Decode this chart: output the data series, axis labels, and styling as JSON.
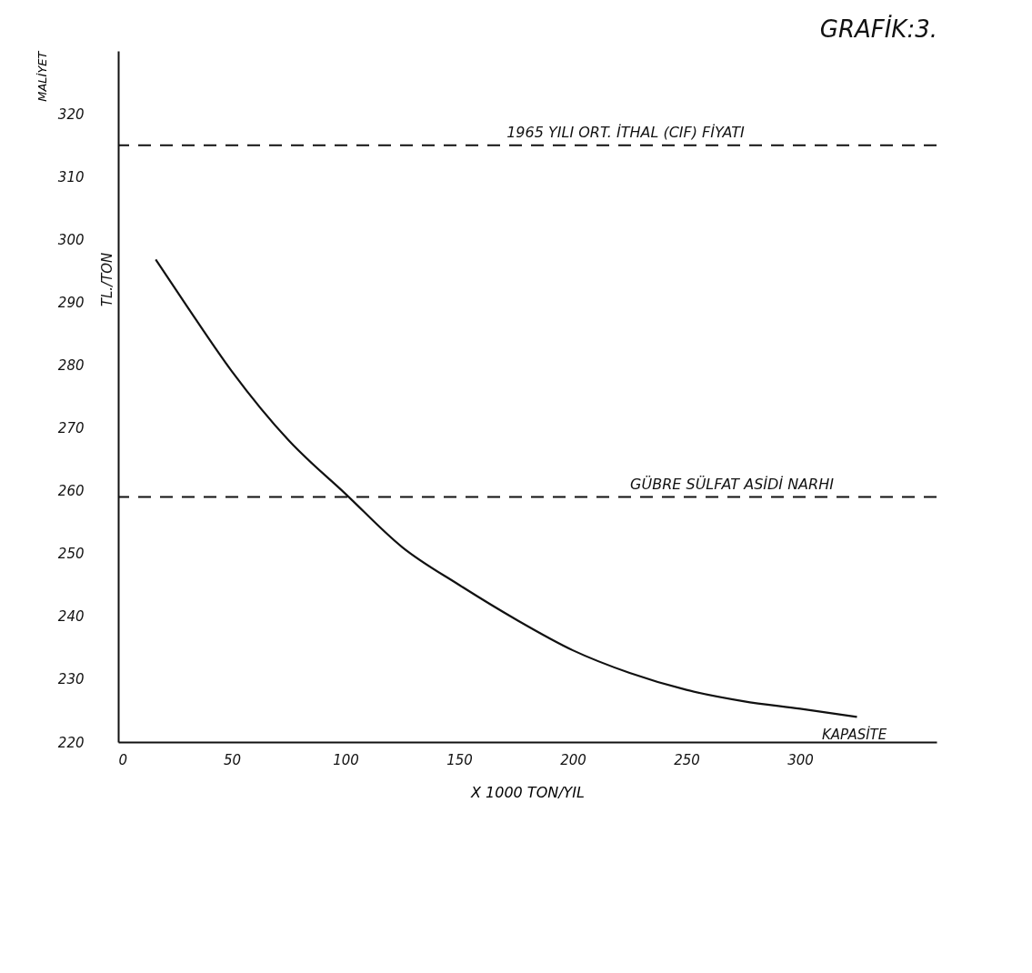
{
  "chart_data": {
    "type": "line",
    "title": "GRAFİK:3.",
    "ylabel": "MALİYET",
    "xlabel": "X 1000 TON/YIL",
    "annotations": [
      "TL./TON",
      "KAPASİTE"
    ],
    "x": [
      16.5,
      30,
      50,
      75,
      100,
      125,
      150,
      175,
      200,
      225,
      250,
      275,
      300,
      325
    ],
    "series": [
      {
        "color": "#111111",
        "values": [
          296.8,
          289.5,
          279,
          268,
          259.5,
          251,
          245,
          239.5,
          234.6,
          231,
          228.3,
          226.5,
          225.3,
          224
        ]
      }
    ],
    "xlim": [
      0,
      360
    ],
    "xticks": [
      0,
      50,
      100,
      150,
      200,
      250,
      300
    ],
    "ylim": [
      220,
      330
    ],
    "yticks": [
      220,
      230,
      240,
      250,
      260,
      270,
      280,
      290,
      300,
      310,
      320
    ],
    "ref_lines": [
      {
        "axis": "y",
        "value": 315,
        "label": "1965 YILI ORT. İTHAL (CIF) FİYATI",
        "line_style": "dashed"
      },
      {
        "axis": "y",
        "value": 259,
        "label": "GÜBRE SÜLFAT ASİDİ NARHI",
        "line_style": "dashed"
      }
    ],
    "grid": false,
    "marker": "none",
    "line_style": "solid"
  }
}
